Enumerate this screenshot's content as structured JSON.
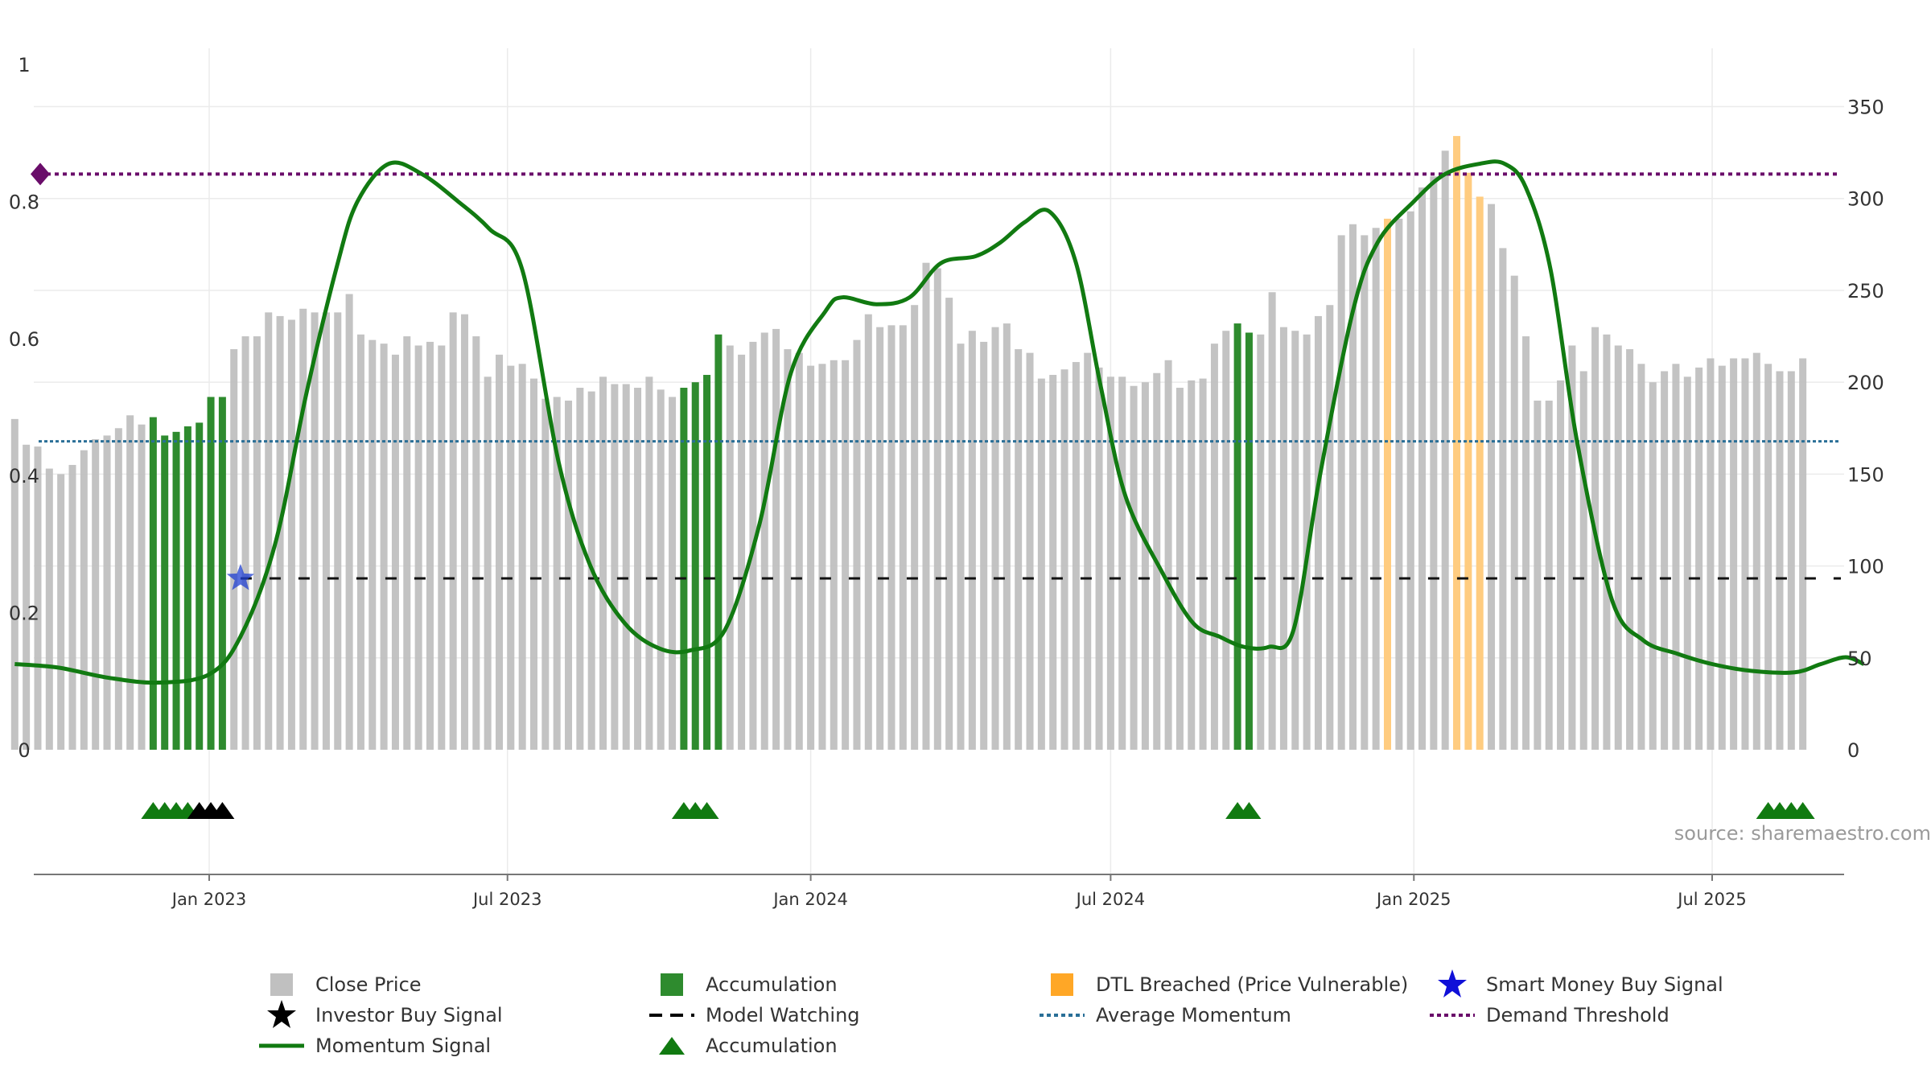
{
  "chart_data": {
    "type": "bar",
    "source": "source: sharemaestro.com",
    "left_axis": {
      "ylim": [
        0,
        1
      ],
      "ticks": [
        0,
        0.2,
        0.4,
        0.6,
        0.8,
        1
      ],
      "tick_labels": [
        "0",
        "0.2",
        "0.4",
        "0.6",
        "0.8",
        "1"
      ]
    },
    "right_axis": {
      "ylim": [
        0,
        373
      ],
      "ticks": [
        0,
        50,
        100,
        150,
        200,
        250,
        300,
        350
      ],
      "tick_labels": [
        "0",
        "50",
        "100",
        "150",
        "200",
        "250",
        "300",
        "350"
      ]
    },
    "x_axis": {
      "ticks": [
        "2023-01-01",
        "2023-07-01",
        "2024-01-01",
        "2024-07-01",
        "2025-01-01",
        "2025-07-01"
      ],
      "tick_labels": [
        "Jan 2023",
        "Jul 2023",
        "Jan 2024",
        "Jul 2024",
        "Jan 2025",
        "Jul 2025"
      ]
    },
    "colors": {
      "close": "#c0c0c0",
      "accumulation": "#2e8b2e",
      "dtl": "#ffcc80",
      "momentum": "#117a11",
      "average": "#2a6f97",
      "demand": "#6a0d6a",
      "watching": "#111111",
      "smart_money": "#1f3fd1"
    },
    "close_price_bars": {
      "start_week": "2022-09-05",
      "values": [
        180,
        166,
        165,
        153,
        150,
        155,
        163,
        169,
        171,
        175,
        182,
        177,
        181,
        171,
        173,
        176,
        178,
        192,
        192,
        218,
        225,
        225,
        238,
        236,
        234,
        240,
        238,
        238,
        238,
        248,
        226,
        223,
        221,
        215,
        225,
        220,
        222,
        220,
        238,
        237,
        225,
        203,
        215,
        209,
        210,
        202,
        191,
        192,
        190,
        197,
        195,
        203,
        199,
        199,
        197,
        203,
        196,
        192,
        197,
        200,
        204,
        226,
        220,
        215,
        222,
        227,
        229,
        218,
        216,
        209,
        210,
        212,
        212,
        223,
        237,
        230,
        231,
        231,
        242,
        265,
        262,
        246,
        221,
        228,
        222,
        230,
        232,
        218,
        216,
        202,
        204,
        207,
        211,
        216,
        208,
        203,
        203,
        198,
        200,
        205,
        212,
        197,
        201,
        202,
        221,
        228,
        232,
        227,
        226,
        249,
        230,
        228,
        226,
        236,
        242,
        280,
        286,
        280,
        284,
        289,
        289,
        293,
        306,
        312,
        326,
        334,
        314,
        301,
        297,
        273,
        258,
        225,
        190,
        190,
        201,
        220,
        206,
        230,
        226,
        220,
        218,
        210,
        200,
        206,
        210,
        203,
        208,
        213,
        209,
        213,
        213,
        216,
        210,
        206,
        206,
        213
      ]
    },
    "accumulation_bars_weeks": [
      12,
      13,
      14,
      15,
      16,
      17,
      18,
      58,
      59,
      60,
      61,
      106,
      107
    ],
    "dtl_breached_bars_weeks": [
      119,
      125,
      126,
      127
    ],
    "momentum_signal": {
      "x": [
        "2022-09-05",
        "2022-10-01",
        "2022-11-01",
        "2022-12-01",
        "2023-01-01",
        "2023-01-20",
        "2023-02-10",
        "2023-03-01",
        "2023-03-20",
        "2023-04-01",
        "2023-04-20",
        "2023-05-10",
        "2023-06-01",
        "2023-06-20",
        "2023-07-10",
        "2023-08-01",
        "2023-08-20",
        "2023-09-10",
        "2023-10-01",
        "2023-10-20",
        "2023-11-10",
        "2023-12-01",
        "2023-12-20",
        "2024-01-10",
        "2024-01-20",
        "2024-02-10",
        "2024-03-01",
        "2024-03-20",
        "2024-04-10",
        "2024-04-25",
        "2024-05-10",
        "2024-05-25",
        "2024-06-10",
        "2024-06-25",
        "2024-07-10",
        "2024-08-01",
        "2024-08-20",
        "2024-09-05",
        "2024-09-20",
        "2024-10-05",
        "2024-10-20",
        "2024-11-05",
        "2024-11-25",
        "2024-12-10",
        "2025-01-01",
        "2025-01-20",
        "2025-02-10",
        "2025-02-25",
        "2025-03-10",
        "2025-03-25",
        "2025-04-10",
        "2025-05-01",
        "2025-05-20",
        "2025-06-10",
        "2025-07-01",
        "2025-07-25",
        "2025-08-20",
        "2025-09-05",
        "2025-09-20",
        "2025-10-01"
      ],
      "values": [
        0.125,
        0.12,
        0.105,
        0.098,
        0.11,
        0.165,
        0.3,
        0.52,
        0.71,
        0.8,
        0.855,
        0.84,
        0.8,
        0.76,
        0.7,
        0.42,
        0.27,
        0.185,
        0.148,
        0.145,
        0.175,
        0.33,
        0.55,
        0.64,
        0.66,
        0.65,
        0.66,
        0.71,
        0.72,
        0.74,
        0.77,
        0.785,
        0.71,
        0.53,
        0.37,
        0.26,
        0.185,
        0.165,
        0.15,
        0.15,
        0.175,
        0.4,
        0.64,
        0.74,
        0.8,
        0.84,
        0.855,
        0.855,
        0.82,
        0.7,
        0.45,
        0.22,
        0.16,
        0.14,
        0.125,
        0.115,
        0.113,
        0.125,
        0.135,
        0.125
      ]
    },
    "thresholds": {
      "average_momentum": 0.45,
      "demand_threshold": 0.84,
      "model_watching": 0.25
    },
    "markers": {
      "accumulation_triangles_weeks": [
        12,
        13,
        14,
        15,
        58,
        59,
        60,
        106,
        107,
        152,
        153,
        154,
        155
      ],
      "investor_buy_weeks": [
        16,
        17,
        18
      ],
      "smart_money_buy": {
        "x": "2023-01-20",
        "value": 0.25
      }
    },
    "legend": [
      {
        "label": "Close Price",
        "type": "square",
        "color": "#c0c0c0"
      },
      {
        "label": "Accumulation",
        "type": "square",
        "color": "#2e8b2e"
      },
      {
        "label": "DTL Breached (Price Vulnerable)",
        "type": "square",
        "color": "#ffa726"
      },
      {
        "label": "Smart Money Buy Signal",
        "type": "star",
        "color": "#1010d8"
      },
      {
        "label": "Investor Buy Signal",
        "type": "star",
        "color": "#000000"
      },
      {
        "label": "Model Watching",
        "type": "dash",
        "color": "#000000"
      },
      {
        "label": "Average Momentum",
        "type": "dot",
        "color": "#2a6f97"
      },
      {
        "label": "Demand Threshold",
        "type": "dot",
        "color": "#6a0d6a"
      },
      {
        "label": "Momentum Signal",
        "type": "line",
        "color": "#117a11"
      },
      {
        "label": "Accumulation",
        "type": "triangle",
        "color": "#117a11"
      }
    ],
    "legend_placement": "bottom",
    "grid": true
  }
}
